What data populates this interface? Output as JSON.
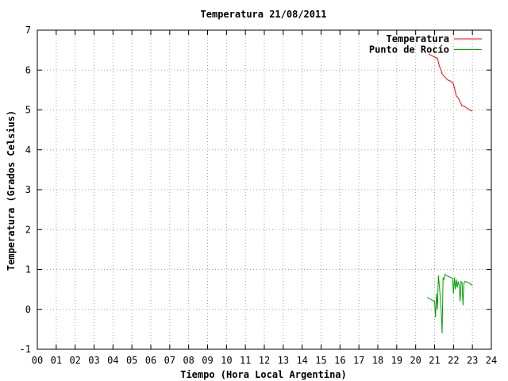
{
  "chart_data": {
    "type": "line",
    "title": "Temperatura 21/08/2011",
    "xlabel": "Tiempo (Hora Local Argentina)",
    "ylabel": "Temperatura (Grados Celsius)",
    "xlim": [
      0,
      24
    ],
    "ylim": [
      -1,
      7
    ],
    "x_ticks": [
      0,
      1,
      2,
      3,
      4,
      5,
      6,
      7,
      8,
      9,
      10,
      11,
      12,
      13,
      14,
      15,
      16,
      17,
      18,
      19,
      20,
      21,
      22,
      23,
      24
    ],
    "x_tick_labels": [
      "00",
      "01",
      "02",
      "03",
      "04",
      "05",
      "06",
      "07",
      "08",
      "09",
      "10",
      "11",
      "12",
      "13",
      "14",
      "15",
      "16",
      "17",
      "18",
      "19",
      "20",
      "21",
      "22",
      "23",
      "24"
    ],
    "y_ticks": [
      -1,
      0,
      1,
      2,
      3,
      4,
      5,
      6,
      7
    ],
    "y_tick_labels": [
      "-1",
      "0",
      "1",
      "2",
      "3",
      "4",
      "5",
      "6",
      "7"
    ],
    "grid": true,
    "legend_position": "top-right",
    "series": [
      {
        "name": "Temperatura",
        "color": "#ff0000",
        "x": [
          20.7,
          20.9,
          21.1,
          21.15,
          21.25,
          21.35,
          21.4,
          21.5,
          21.6,
          21.7,
          21.85,
          22.0,
          22.05,
          22.15,
          22.25,
          22.35,
          22.45,
          22.55,
          22.7,
          22.85,
          23.0
        ],
        "y": [
          6.4,
          6.35,
          6.3,
          6.3,
          6.1,
          6.0,
          5.9,
          5.85,
          5.8,
          5.75,
          5.72,
          5.65,
          5.55,
          5.35,
          5.3,
          5.2,
          5.1,
          5.1,
          5.05,
          5.0,
          4.97
        ]
      },
      {
        "name": "Punto de Rocío",
        "color": "#00a000",
        "x": [
          20.6,
          20.8,
          21.0,
          21.05,
          21.1,
          21.15,
          21.2,
          21.25,
          21.35,
          21.4,
          21.45,
          21.5,
          21.55,
          21.6,
          21.75,
          21.95,
          22.0,
          22.05,
          22.1,
          22.15,
          22.2,
          22.25,
          22.3,
          22.35,
          22.4,
          22.45,
          22.5,
          22.55,
          22.6,
          22.75,
          23.0
        ],
        "y": [
          0.3,
          0.25,
          0.2,
          -0.2,
          0.4,
          0.0,
          0.85,
          0.6,
          0.0,
          -0.6,
          0.8,
          0.75,
          0.88,
          0.85,
          0.82,
          0.78,
          0.4,
          0.8,
          0.5,
          0.75,
          0.55,
          0.7,
          0.6,
          0.2,
          0.7,
          0.68,
          0.1,
          0.65,
          0.7,
          0.68,
          0.6
        ]
      }
    ]
  }
}
